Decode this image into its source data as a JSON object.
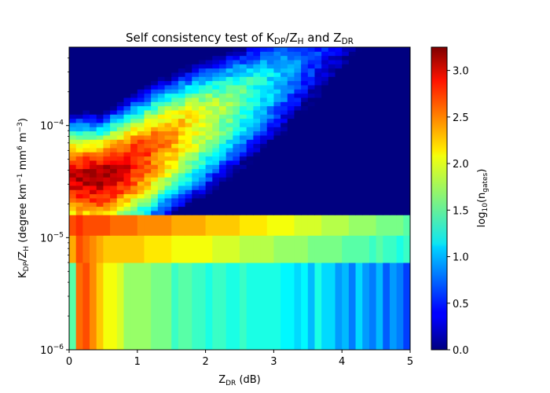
{
  "chart_data": {
    "type": "heatmap",
    "title": {
      "main": "Self consistency test of K",
      "sub1": "DP",
      "mid1": "/Z",
      "sub2": "H",
      "mid2": " and Z",
      "sub3": "DR"
    },
    "xlabel": {
      "main": "Z",
      "sub": "DR",
      "rest": " (dB)"
    },
    "ylabel": {
      "p1": "K",
      "s1": "DP",
      "p2": "/Z",
      "s2": "H",
      "p3": " (degree km",
      "e1": "−1",
      "p4": " mm",
      "e2": "6",
      "p5": " m",
      "e3": "−3",
      "p6": ")"
    },
    "colorbar_label": {
      "main": "log",
      "sub1": "10",
      "open": "(n",
      "sub2": "gates",
      "close": ")"
    },
    "x_range": [
      0,
      5
    ],
    "y_range": [
      1e-06,
      0.0005
    ],
    "y_scale": "log",
    "c_range": [
      0,
      3.25
    ],
    "colormap": "jet",
    "x_ticks": [
      {
        "value": 0,
        "label": "0"
      },
      {
        "value": 1,
        "label": "1"
      },
      {
        "value": 2,
        "label": "2"
      },
      {
        "value": 3,
        "label": "3"
      },
      {
        "value": 4,
        "label": "4"
      },
      {
        "value": 5,
        "label": "5"
      }
    ],
    "y_ticks": [
      {
        "value": 1e-06,
        "base": "10",
        "exp": "−6"
      },
      {
        "value": 1e-05,
        "base": "10",
        "exp": "−5"
      },
      {
        "value": 0.0001,
        "base": "10",
        "exp": "−4"
      }
    ],
    "colorbar_ticks": [
      {
        "value": 0.0,
        "label": "0.0"
      },
      {
        "value": 0.5,
        "label": "0.5"
      },
      {
        "value": 1.0,
        "label": "1.0"
      },
      {
        "value": 1.5,
        "label": "1.5"
      },
      {
        "value": 2.0,
        "label": "2.0"
      },
      {
        "value": 2.5,
        "label": "2.5"
      },
      {
        "value": 3.0,
        "label": "3.0"
      }
    ],
    "x_bin_width": 0.1,
    "y_rows": [
      {
        "y0": 1e-06,
        "y1": 6e-06,
        "values": [
          1.5,
          2.5,
          2.6,
          2.4,
          2.2,
          2.0,
          2.0,
          1.9,
          1.7,
          1.7,
          1.7,
          1.7,
          1.6,
          1.6,
          1.6,
          1.4,
          1.5,
          1.5,
          1.4,
          1.4,
          1.3,
          1.4,
          1.4,
          1.3,
          1.3,
          1.4,
          1.3,
          1.3,
          1.3,
          1.3,
          1.3,
          1.2,
          1.2,
          1.1,
          1.2,
          1.0,
          1.3,
          1.1,
          1.1,
          0.9,
          1.0,
          0.8,
          1.1,
          0.9,
          0.8,
          1.0,
          0.7,
          0.9,
          0.8,
          0.6
        ]
      },
      {
        "y0": 6e-06,
        "y1": 1.05e-05,
        "values": [
          2.3,
          2.6,
          2.5,
          2.4,
          2.3,
          2.2,
          2.2,
          2.2,
          2.2,
          2.2,
          2.2,
          2.1,
          2.1,
          2.1,
          2.1,
          2.0,
          2.0,
          2.0,
          2.0,
          2.0,
          2.0,
          1.9,
          1.9,
          1.9,
          1.9,
          1.8,
          1.8,
          1.8,
          1.8,
          1.8,
          1.7,
          1.7,
          1.7,
          1.7,
          1.7,
          1.6,
          1.6,
          1.6,
          1.6,
          1.6,
          1.5,
          1.5,
          1.5,
          1.5,
          1.4,
          1.5,
          1.4,
          1.4,
          1.3,
          1.4
        ]
      },
      {
        "y0": 1.05e-05,
        "y1": 1.6e-05,
        "values": [
          2.6,
          2.7,
          2.6,
          2.6,
          2.6,
          2.6,
          2.5,
          2.5,
          2.5,
          2.5,
          2.4,
          2.4,
          2.4,
          2.4,
          2.4,
          2.3,
          2.3,
          2.3,
          2.3,
          2.3,
          2.2,
          2.2,
          2.2,
          2.2,
          2.2,
          2.1,
          2.1,
          2.1,
          2.1,
          2.0,
          2.0,
          2.0,
          2.0,
          1.9,
          1.9,
          1.9,
          1.9,
          1.8,
          1.8,
          1.8,
          1.8,
          1.7,
          1.7,
          1.7,
          1.7,
          1.6,
          1.6,
          1.6,
          1.6,
          1.5
        ]
      }
    ],
    "density": {
      "peak_x": 0.45,
      "peak_y": 3.5e-05,
      "peak_value": 3.25,
      "ridge_points": [
        [
          0.45,
          3.5e-05
        ],
        [
          1.5,
          0.0001
        ],
        [
          2.5,
          0.00022
        ],
        [
          3.2,
          0.0004
        ]
      ],
      "y_min": 1.6e-05
    }
  }
}
